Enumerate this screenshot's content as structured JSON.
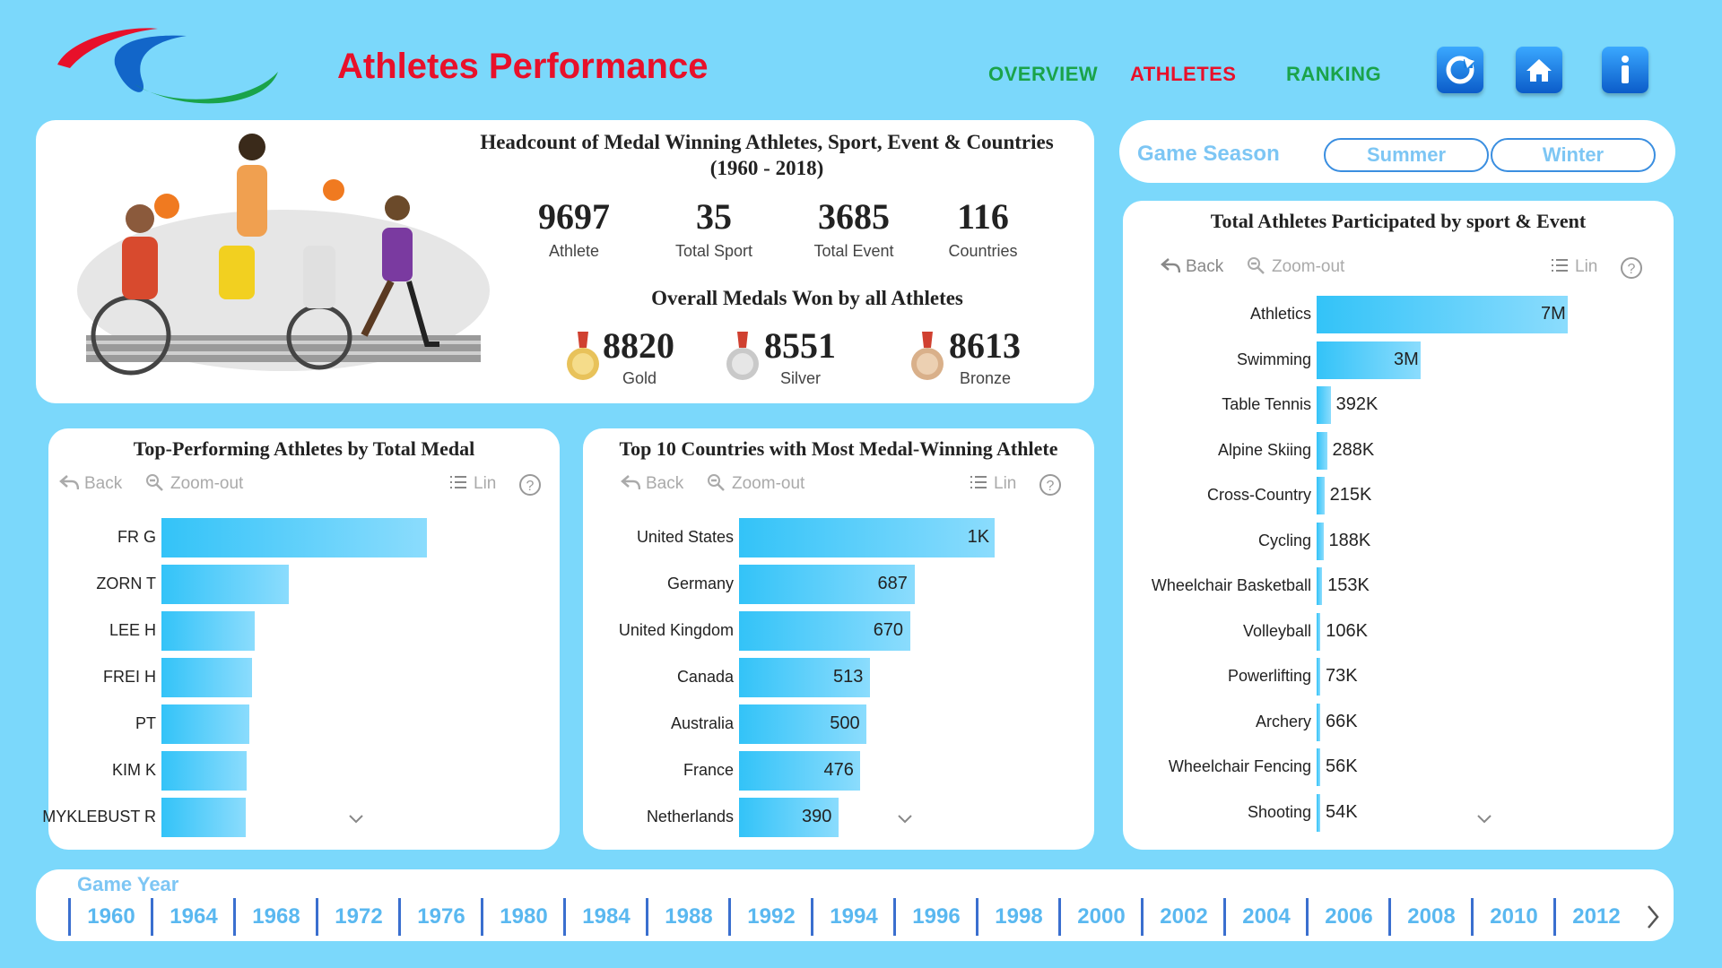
{
  "header": {
    "title": "Athletes Performance",
    "nav": [
      {
        "label": "OVERVIEW",
        "color": "#1aa34a"
      },
      {
        "label": "ATHLETES",
        "color": "#e8102a"
      },
      {
        "label": "RANKING",
        "color": "#1aa34a"
      }
    ],
    "buttons": [
      "refresh-icon",
      "home-icon",
      "info-icon"
    ]
  },
  "headcount": {
    "title": "Headcount of Medal Winning Athletes, Sport, Event & Countries",
    "subtitle": "(1960 - 2018)",
    "kpis": [
      {
        "value": "9697",
        "label": "Athlete"
      },
      {
        "value": "35",
        "label": "Total Sport"
      },
      {
        "value": "3685",
        "label": "Total Event"
      },
      {
        "value": "116",
        "label": "Countries"
      }
    ],
    "medals_title": "Overall Medals Won by all  Athletes",
    "medals": [
      {
        "value": "8820",
        "label": "Gold",
        "color": "#e8c25a"
      },
      {
        "value": "8551",
        "label": "Silver",
        "color": "#c9c9c9"
      },
      {
        "value": "8613",
        "label": "Bronze",
        "color": "#d9b08a"
      }
    ]
  },
  "season": {
    "title": "Game Season",
    "options": [
      "Summer",
      "Winter"
    ]
  },
  "toolbar": {
    "back": "Back",
    "zoom": "Zoom-out",
    "lin": "Lin"
  },
  "chart_data": [
    {
      "type": "bar",
      "orientation": "horizontal",
      "title": "Top-Performing Athletes by Total Medal",
      "categories": [
        "FR G",
        "ZORN T",
        "LEE H",
        "FREI H",
        "PT",
        "KIM K",
        "MYKLEBUST R"
      ],
      "values": [
        36,
        17.3,
        12.6,
        12.3,
        11.9,
        11.5,
        11.4
      ],
      "data_labels": [
        "",
        "",
        "",
        "",
        "",
        "",
        ""
      ],
      "xlim": [
        0,
        45
      ]
    },
    {
      "type": "bar",
      "orientation": "horizontal",
      "title": "Top 10 Countries with Most Medal-Winning Athlete",
      "categories": [
        "United States",
        "Germany",
        "United Kingdom",
        "Canada",
        "Australia",
        "France",
        "Netherlands"
      ],
      "values": [
        1000,
        687,
        670,
        513,
        500,
        476,
        390
      ],
      "data_labels": [
        "1K",
        "687",
        "670",
        "513",
        "500",
        "476",
        "390"
      ],
      "xlim": [
        0,
        1300
      ]
    },
    {
      "type": "bar",
      "orientation": "horizontal",
      "title": "Total Athletes Participated  by sport & Event",
      "categories": [
        "Athletics",
        "Swimming",
        "Table Tennis",
        "Alpine Skiing",
        "Cross-Country",
        "Cycling",
        "Wheelchair Basketball",
        "Volleyball",
        "Powerlifting",
        "Archery",
        "Wheelchair Fencing",
        "Shooting"
      ],
      "values": [
        7000000,
        2900000,
        392000,
        288000,
        215000,
        188000,
        153000,
        106000,
        73000,
        66000,
        56000,
        54000
      ],
      "data_labels": [
        "7M",
        "3M",
        "392K",
        "288K",
        "215K",
        "188K",
        "153K",
        "106K",
        "73K",
        "66K",
        "56K",
        "54K"
      ],
      "xlim": [
        0,
        9000000
      ]
    }
  ],
  "years": {
    "title": "Game Year",
    "items": [
      "1960",
      "1964",
      "1968",
      "1972",
      "1976",
      "1980",
      "1984",
      "1988",
      "1992",
      "1994",
      "1996",
      "1998",
      "2000",
      "2002",
      "2004",
      "2006",
      "2008",
      "2010",
      "2012"
    ]
  }
}
